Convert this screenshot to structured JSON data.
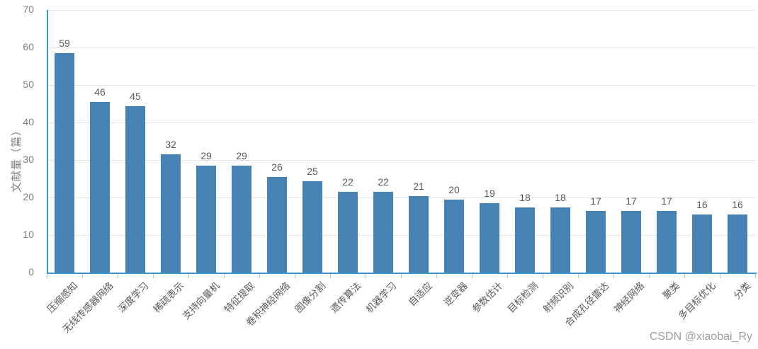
{
  "watermark": "CSDN @xiaobai_Ry",
  "colors": {
    "bar": "#4682B4",
    "axis_line": "#3E96CE",
    "tick_mark": "#A3C9E8",
    "gridline": "#E4E4E4",
    "value_label": "#595959",
    "axis_tick_text": "#7F7F7F",
    "category_text": "#595959",
    "watermark_text": "#9E9E9E"
  },
  "chart_data": {
    "type": "bar",
    "title": "",
    "xlabel": "",
    "ylabel": "文献量（篇）",
    "categories": [
      "压缩感知",
      "无线传感器网络",
      "深度学习",
      "稀疏表示",
      "支持向量机",
      "特征提取",
      "卷积神经网络",
      "图像分割",
      "遗传算法",
      "机器学习",
      "自适应",
      "逆变器",
      "参数估计",
      "目标检测",
      "射频识别",
      "合成孔径雷达",
      "神经网络",
      "聚类",
      "多目标优化",
      "分类"
    ],
    "values": [
      59,
      46,
      45,
      32,
      29,
      29,
      26,
      25,
      22,
      22,
      21,
      20,
      19,
      18,
      18,
      17,
      17,
      17,
      16,
      16
    ],
    "ylim": [
      0,
      70
    ],
    "yticks": [
      0,
      10,
      20,
      30,
      40,
      50,
      60,
      70
    ],
    "grid": true,
    "legend": false,
    "bar_labels_shown": true
  }
}
